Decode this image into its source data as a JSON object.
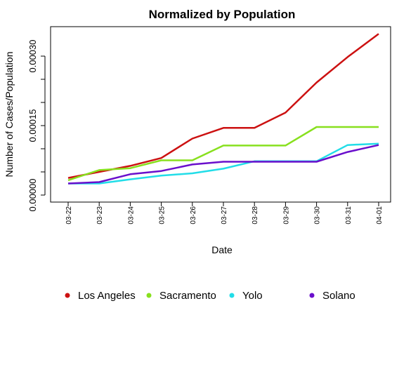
{
  "chart_data": {
    "type": "line",
    "title": "Normalized by Population",
    "xlabel": "Date",
    "ylabel": "Number of Cases/Population",
    "categories": [
      "03-22",
      "03-23",
      "03-24",
      "03-25",
      "03-26",
      "03-27",
      "03-28",
      "03-29",
      "03-30",
      "03-31",
      "04-01"
    ],
    "ylim": [
      0,
      0.00035
    ],
    "yticks": [
      0,
      5e-05,
      0.0001,
      0.00015,
      0.0002,
      0.00025,
      0.0003
    ],
    "ytick_labels": [
      "0.00000",
      "",
      "",
      "0.00015",
      "",
      "",
      "0.00030"
    ],
    "grid": false,
    "legend_position": "bottom",
    "series": [
      {
        "name": "Los Angeles",
        "color": "#cc1111",
        "values": [
          3.7e-05,
          5e-05,
          6.3e-05,
          8e-05,
          0.000122,
          0.000145,
          0.000145,
          0.000178,
          0.000243,
          0.000298,
          0.000348
        ]
      },
      {
        "name": "Sacramento",
        "color": "#88e01e",
        "values": [
          3.2e-05,
          5.4e-05,
          5.8e-05,
          7.5e-05,
          7.5e-05,
          0.000107,
          0.000107,
          0.000107,
          0.000147,
          0.000147,
          0.000147
        ]
      },
      {
        "name": "Yolo",
        "color": "#22dde8",
        "values": [
          2.5e-05,
          2.5e-05,
          3.4e-05,
          4.2e-05,
          4.7e-05,
          5.7e-05,
          7.3e-05,
          7.3e-05,
          7.3e-05,
          0.000108,
          0.000111
        ]
      },
      {
        "name": "Solano",
        "color": "#6a0fcc",
        "values": [
          2.5e-05,
          2.8e-05,
          4.5e-05,
          5.2e-05,
          6.6e-05,
          7.2e-05,
          7.2e-05,
          7.2e-05,
          7.2e-05,
          9.3e-05,
          0.000108
        ]
      }
    ]
  }
}
